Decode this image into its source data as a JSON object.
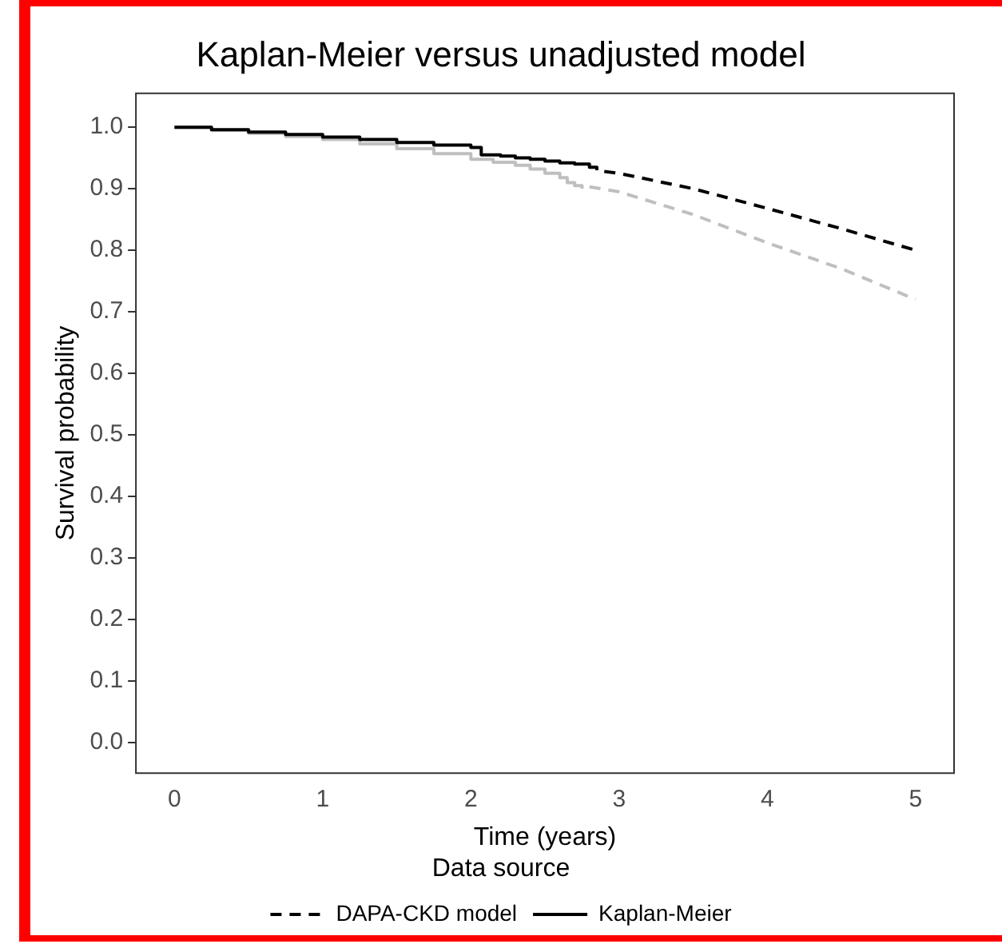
{
  "chart_data": {
    "type": "line",
    "title": "Kaplan-Meier versus unadjusted model",
    "xlabel": "Time (years)",
    "ylabel": "Survival probability",
    "legend_title": "Data source",
    "legend": "bottom",
    "grid": false,
    "marker": "none",
    "xlim": [
      -0.26,
      5.26
    ],
    "xticks": [
      0,
      1,
      2,
      3,
      4,
      5
    ],
    "ylim": [
      -0.05,
      1.055
    ],
    "yticks": [
      {
        "value": 0,
        "label": "0.0"
      },
      {
        "value": 0.1,
        "label": "0.1"
      },
      {
        "value": 0.2,
        "label": "0.2"
      },
      {
        "value": 0.3,
        "label": "0.3"
      },
      {
        "value": 0.4,
        "label": "0.4"
      },
      {
        "value": 0.5,
        "label": "0.5"
      },
      {
        "value": 0.6,
        "label": "0.6"
      },
      {
        "value": 0.7,
        "label": "0.7"
      },
      {
        "value": 0.8,
        "label": "0.8"
      },
      {
        "value": 0.9,
        "label": "0.9"
      },
      {
        "value": 1,
        "label": "1.0"
      }
    ],
    "series": [
      {
        "name": "DAPA-CKD model",
        "type": "line",
        "line_style": "dashed",
        "color": "#000000",
        "x": [
          2.9,
          3.0,
          3.5,
          4.0,
          4.5,
          5.0
        ],
        "values": [
          0.928,
          0.925,
          0.9,
          0.868,
          0.835,
          0.8
        ]
      },
      {
        "type": "line",
        "line_style": "dashed",
        "color": "#bfbfbf",
        "x": [
          2.8,
          3.0,
          3.5,
          4.0,
          4.5,
          5.0
        ],
        "values": [
          0.903,
          0.895,
          0.858,
          0.812,
          0.77,
          0.72
        ]
      },
      {
        "name": "Kaplan-Meier",
        "type": "step",
        "line_style": "solid",
        "color": "#000000",
        "x": [
          0,
          0.25,
          0.5,
          0.75,
          1.0,
          1.25,
          1.5,
          1.75,
          2.0,
          2.07,
          2.2,
          2.3,
          2.4,
          2.5,
          2.6,
          2.7,
          2.8,
          2.85
        ],
        "values": [
          1.0,
          0.996,
          0.992,
          0.988,
          0.984,
          0.98,
          0.975,
          0.971,
          0.967,
          0.955,
          0.953,
          0.95,
          0.948,
          0.945,
          0.942,
          0.94,
          0.935,
          0.93
        ]
      },
      {
        "type": "step",
        "line_style": "solid",
        "color": "#bfbfbf",
        "x": [
          0,
          0.25,
          0.5,
          0.75,
          1.0,
          1.25,
          1.5,
          1.75,
          2.0,
          2.15,
          2.3,
          2.4,
          2.5,
          2.6,
          2.65,
          2.7,
          2.75
        ],
        "values": [
          1.0,
          0.995,
          0.99,
          0.985,
          0.98,
          0.973,
          0.965,
          0.957,
          0.948,
          0.943,
          0.938,
          0.932,
          0.925,
          0.918,
          0.91,
          0.905,
          0.9
        ]
      }
    ]
  }
}
